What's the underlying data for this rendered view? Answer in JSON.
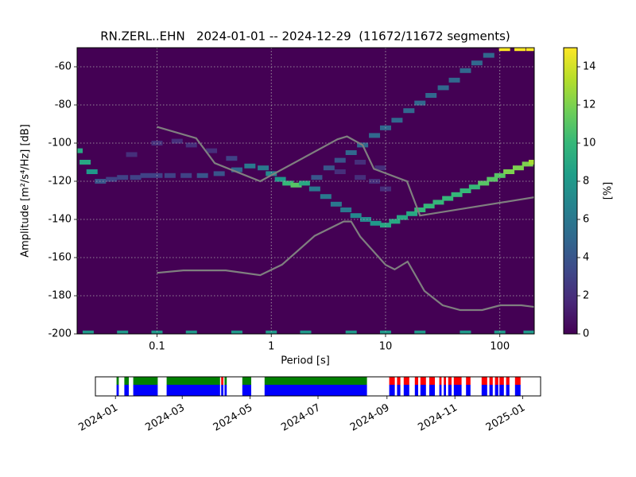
{
  "chart_data": [
    {
      "type": "ppsd",
      "title": "RN.ZERL..EHN   2024-01-01 -- 2024-12-29  (11672/11672 segments)",
      "xlabel": "Period [s]",
      "ylabel": "Amplitude [m²/s⁴/Hz] [dB]",
      "xscale": "log",
      "xlim": [
        0.02,
        200
      ],
      "xticks": [
        0.1,
        1,
        10,
        100
      ],
      "ylim": [
        -200,
        -50
      ],
      "yticks": [
        -200,
        -180,
        -160,
        -140,
        -120,
        -100,
        -80,
        -60
      ],
      "grid": true,
      "colormap": [
        "#440154",
        "#482878",
        "#3e4989",
        "#31688e",
        "#26828e",
        "#1f9e89",
        "#35b779",
        "#6ece58",
        "#b5de2b",
        "#fde725"
      ],
      "clim": [
        0,
        15
      ],
      "cticks": [
        0,
        2,
        4,
        6,
        8,
        10,
        12,
        14
      ],
      "clabel": "[%]",
      "x": [
        0.02,
        0.0235,
        0.027,
        0.032,
        0.04,
        0.05,
        0.065,
        0.08,
        0.1,
        0.06,
        0.1,
        0.15,
        0.2,
        0.3,
        0.45,
        0.13,
        0.18,
        0.25,
        0.35,
        0.5,
        0.65,
        0.85,
        1.0,
        1.2,
        1.4,
        1.65,
        1.95,
        2.4,
        3,
        3.7,
        4.5,
        5.5,
        6.7,
        8.2,
        10,
        12,
        14,
        17,
        20,
        24,
        29,
        35,
        42,
        50,
        60,
        72,
        86,
        100,
        120,
        145,
        175,
        200,
        2.5,
        3.2,
        4,
        5,
        6.3,
        8,
        10,
        12.6,
        16,
        20,
        25,
        32,
        40,
        50,
        63,
        80,
        110,
        150,
        190,
        4,
        6,
        8,
        10,
        6,
        9,
        0.025,
        0.05,
        0.1,
        0.2,
        0.5,
        1,
        2,
        5,
        10,
        20,
        50,
        100,
        180
      ],
      "y": [
        -104,
        -110,
        -115,
        -120,
        -119,
        -118,
        -118,
        -117,
        -117,
        -106,
        -100,
        -99,
        -101,
        -104,
        -108,
        -117,
        -117,
        -117,
        -116,
        -114,
        -112,
        -113,
        -116,
        -119,
        -121,
        -122,
        -121,
        -124,
        -128,
        -132,
        -135,
        -138,
        -140,
        -142,
        -143,
        -141,
        -139,
        -137,
        -135,
        -133,
        -131,
        -129,
        -127,
        -125,
        -123,
        -121,
        -119,
        -117,
        -115,
        -113,
        -111,
        -110,
        -118,
        -113,
        -109,
        -105,
        -101,
        -96,
        -92,
        -88,
        -83,
        -79,
        -75,
        -71,
        -67,
        -62,
        -58,
        -54,
        -50.5,
        -50.5,
        -50.5,
        -115,
        -118,
        -120,
        -124,
        -110,
        -113,
        -199.5,
        -199.5,
        -199.5,
        -199.5,
        -199.5,
        -199.5,
        -199.5,
        -199.5,
        -199.5,
        -199.5,
        -199.5,
        -199.5,
        -199.5
      ],
      "values": [
        9,
        9,
        8,
        4,
        3,
        3,
        3,
        3,
        3,
        2,
        2,
        2,
        2,
        2,
        3,
        3,
        3,
        4,
        4,
        5,
        6,
        6,
        7,
        8,
        10,
        11,
        9,
        6,
        6,
        6,
        6,
        7,
        7,
        8,
        9,
        9,
        9,
        9,
        10,
        10,
        10,
        10,
        10,
        10,
        10,
        11,
        11,
        11,
        12,
        12,
        12,
        13,
        4,
        4,
        4,
        5,
        5,
        5,
        5,
        5,
        5,
        5,
        5,
        5,
        5,
        5,
        5,
        5,
        15,
        15,
        15,
        2,
        2,
        2,
        2,
        2,
        2,
        8,
        8,
        8,
        8,
        8,
        8,
        8,
        8,
        8,
        8,
        8,
        8,
        8
      ],
      "lines": [
        {
          "color": "#7f7f7f",
          "x": [
            0.1,
            0.22,
            0.32,
            0.8,
            3.8,
            4.6,
            6.3,
            7.9,
            15.4,
            20,
            354.8
          ],
          "y": [
            -91.5,
            -97.4,
            -110.5,
            -120,
            -98,
            -96.5,
            -101,
            -113.5,
            -120,
            -138,
            -126
          ]
        },
        {
          "color": "#7f7f7f",
          "x": [
            0.1,
            0.17,
            0.4,
            0.8,
            1.24,
            2.4,
            4.3,
            5,
            6,
            10,
            12,
            15.6,
            21.9,
            31.6,
            45,
            70,
            101,
            154,
            328
          ],
          "y": [
            -168,
            -166.7,
            -166.7,
            -169.2,
            -163.7,
            -148.6,
            -141.1,
            -141.1,
            -149,
            -163.8,
            -166.2,
            -162.1,
            -177.5,
            -185,
            -187.5,
            -187.5,
            -185,
            -185,
            -187.5
          ]
        }
      ]
    },
    {
      "type": "timeline",
      "xlim": [
        "2023-12-14",
        "2025-01-17"
      ],
      "xticks": [
        "2024-01",
        "2024-03",
        "2024-05",
        "2024-07",
        "2024-09",
        "2024-11",
        "2025-01"
      ],
      "lower_color": "#0000ff",
      "intervals": [
        {
          "start": "2024-01-02",
          "end": "2024-01-04",
          "upper": "#008000"
        },
        {
          "start": "2024-01-09",
          "end": "2024-01-13",
          "upper": "#008000"
        },
        {
          "start": "2024-01-17",
          "end": "2024-02-08",
          "upper": "#008000"
        },
        {
          "start": "2024-02-16",
          "end": "2024-04-04",
          "upper": "#008000"
        },
        {
          "start": "2024-04-05",
          "end": "2024-04-07",
          "upper": "#ff0000"
        },
        {
          "start": "2024-04-08",
          "end": "2024-04-10",
          "upper": "#008000"
        },
        {
          "start": "2024-04-24",
          "end": "2024-05-02",
          "upper": "#008000"
        },
        {
          "start": "2024-05-14",
          "end": "2024-08-14",
          "upper": "#008000"
        },
        {
          "start": "2024-09-03",
          "end": "2024-09-08",
          "upper": "#ff0000"
        },
        {
          "start": "2024-09-10",
          "end": "2024-09-13",
          "upper": "#ff0000"
        },
        {
          "start": "2024-09-16",
          "end": "2024-09-21",
          "upper": "#ff0000"
        },
        {
          "start": "2024-09-26",
          "end": "2024-09-29",
          "upper": "#ff0000"
        },
        {
          "start": "2024-10-01",
          "end": "2024-10-06",
          "upper": "#ff0000"
        },
        {
          "start": "2024-10-09",
          "end": "2024-10-14",
          "upper": "#ff0000"
        },
        {
          "start": "2024-10-18",
          "end": "2024-10-20",
          "upper": "#ff0000"
        },
        {
          "start": "2024-10-22",
          "end": "2024-10-24",
          "upper": "#ff0000"
        },
        {
          "start": "2024-10-26",
          "end": "2024-10-29",
          "upper": "#ff0000"
        },
        {
          "start": "2024-10-31",
          "end": "2024-11-07",
          "upper": "#ff0000"
        },
        {
          "start": "2024-11-11",
          "end": "2024-11-15",
          "upper": "#ff0000"
        },
        {
          "start": "2024-11-25",
          "end": "2024-11-30",
          "upper": "#ff0000"
        },
        {
          "start": "2024-12-02",
          "end": "2024-12-05",
          "upper": "#ff0000"
        },
        {
          "start": "2024-12-07",
          "end": "2024-12-10",
          "upper": "#ff0000"
        },
        {
          "start": "2024-12-11",
          "end": "2024-12-15",
          "upper": "#ff0000"
        },
        {
          "start": "2024-12-17",
          "end": "2024-12-20",
          "upper": "#ff0000"
        },
        {
          "start": "2024-12-25",
          "end": "2024-12-30",
          "upper": "#ff0000"
        }
      ]
    }
  ]
}
